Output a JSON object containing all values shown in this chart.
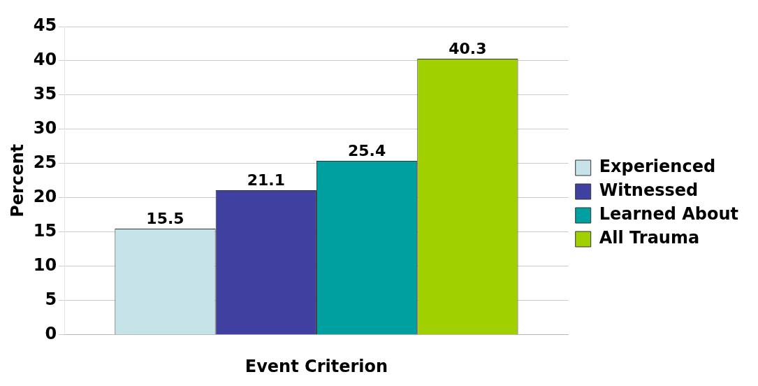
{
  "chart_data": {
    "type": "bar",
    "xlabel": "Event Criterion",
    "ylabel": "Percent",
    "categories": [
      null
    ],
    "series": [
      {
        "name": "Experienced",
        "color": "#c5e3e8",
        "values": [
          15.5
        ]
      },
      {
        "name": "Witnessed",
        "color": "#4040a0",
        "values": [
          21.1
        ]
      },
      {
        "name": "Learned About",
        "color": "#00a0a0",
        "values": [
          25.4
        ]
      },
      {
        "name": "All Trauma",
        "color": "#a0d000",
        "values": [
          40.3
        ]
      }
    ],
    "ylim": [
      0,
      45
    ],
    "yticks": [
      0,
      5,
      10,
      15,
      20,
      25,
      30,
      35,
      40,
      45
    ],
    "grid": "y",
    "legend": "right",
    "data_labels": true
  }
}
